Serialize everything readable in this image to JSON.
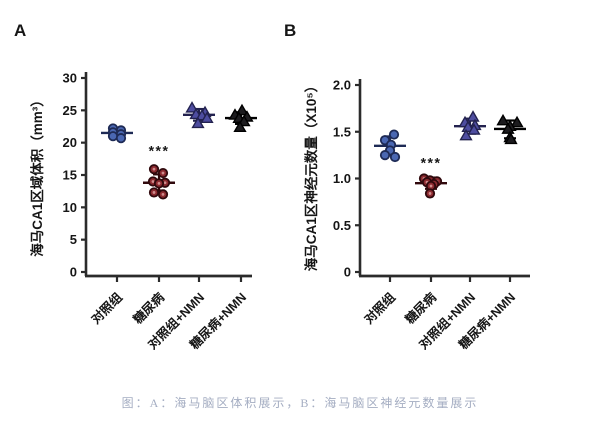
{
  "caption": {
    "text": "图：A：海马脑区体积展示，B：海马脑区神经元数量展示",
    "color": "#a4adc2"
  },
  "chart_data": [
    {
      "type": "scatter",
      "panel_label": "A",
      "ylabel": "海马CA1区域体积（mm³）",
      "xlabel": "",
      "ylim": [
        0,
        30
      ],
      "yticks": [
        0,
        5,
        10,
        15,
        20,
        25,
        30
      ],
      "ytick_labels": [
        "0",
        "5",
        "10",
        "15",
        "20",
        "25",
        "30"
      ],
      "categories": [
        "对照组",
        "糖尿病",
        "对照组+NMN",
        "糖尿病+NMN"
      ],
      "grid": false,
      "legend": "none",
      "groups": [
        {
          "label": "对照组",
          "marker": "circle",
          "color": "#4a67b2",
          "stroke": "#1e2a55",
          "values": [
            22.2,
            21.9,
            21.6,
            21.3,
            21.0,
            20.7
          ],
          "dx": [
            -4,
            4,
            -4,
            4,
            -4,
            4
          ],
          "mean": 21.5,
          "sd_low": 20.7,
          "sd_high": 22.3,
          "sig": "",
          "sig_y": null
        },
        {
          "label": "糖尿病",
          "marker": "circle",
          "color": "#8c2a30",
          "stroke": "#30090d",
          "center_dot": "#cf8d8d",
          "values": [
            15.9,
            15.3,
            14.0,
            13.8,
            13.7,
            12.3,
            12.0
          ],
          "dx": [
            -5,
            4,
            -6,
            6,
            0,
            -5,
            4
          ],
          "mean": 13.8,
          "sd_low": 12.6,
          "sd_high": 15.1,
          "sig": "***",
          "sig_y": 18.0
        },
        {
          "label": "对照组+NMN",
          "marker": "triangle",
          "color": "#4e4da0",
          "stroke": "#23224f",
          "values": [
            25.4,
            24.7,
            24.4,
            24.2,
            23.8,
            23.0
          ],
          "dx": [
            -7,
            6,
            -3,
            3,
            8,
            -1
          ],
          "mean": 24.3,
          "sd_low": 23.4,
          "sd_high": 25.2,
          "sig": "",
          "sig_y": null
        },
        {
          "label": "糖尿病+NMN",
          "marker": "triangle",
          "color": "#1c1b1e",
          "stroke": "#000000",
          "values": [
            25.0,
            24.3,
            24.0,
            23.8,
            23.3,
            22.4
          ],
          "dx": [
            1,
            -6,
            6,
            -2,
            3,
            -1
          ],
          "mean": 23.8,
          "sd_low": 22.9,
          "sd_high": 24.7,
          "sig": "",
          "sig_y": null
        }
      ]
    },
    {
      "type": "scatter",
      "panel_label": "B",
      "ylabel": "海马CA1区神经元数量（X10⁵）",
      "xlabel": "",
      "ylim": [
        0,
        2.0
      ],
      "yticks": [
        0,
        0.5,
        1.0,
        1.5,
        2.0
      ],
      "ytick_labels": [
        "0",
        "0.5",
        "1.0",
        "1.5",
        "2.0"
      ],
      "categories": [
        "对照组",
        "糖尿病",
        "对照组+NMN",
        "糖尿病+NMN"
      ],
      "grid": false,
      "legend": "none",
      "groups": [
        {
          "label": "对照组",
          "marker": "circle",
          "color": "#4a67b2",
          "stroke": "#1e2a55",
          "values": [
            1.47,
            1.41,
            1.36,
            1.3,
            1.25,
            1.23
          ],
          "dx": [
            4,
            -5,
            1,
            0,
            -5,
            5
          ],
          "mean": 1.35,
          "sd_low": 1.25,
          "sd_high": 1.45,
          "sig": "",
          "sig_y": null
        },
        {
          "label": "糖尿病",
          "marker": "circle",
          "color": "#8c2a30",
          "stroke": "#30090d",
          "center_dot": "#cf8d8d",
          "values": [
            1.0,
            0.98,
            0.97,
            0.96,
            0.94,
            0.92,
            0.84
          ],
          "dx": [
            -7,
            -1,
            6,
            -4,
            3,
            0,
            -1
          ],
          "mean": 0.95,
          "sd_low": 0.89,
          "sd_high": 1.01,
          "sig": "***",
          "sig_y": 1.12
        },
        {
          "label": "对照组+NMN",
          "marker": "triangle",
          "color": "#4e4da0",
          "stroke": "#23224f",
          "values": [
            1.66,
            1.6,
            1.57,
            1.55,
            1.52,
            1.46
          ],
          "dx": [
            3,
            -5,
            5,
            -2,
            4,
            -4
          ],
          "mean": 1.56,
          "sd_low": 1.48,
          "sd_high": 1.64,
          "sig": "",
          "sig_y": null
        },
        {
          "label": "糖尿病+NMN",
          "marker": "triangle",
          "color": "#1c1b1e",
          "stroke": "#000000",
          "values": [
            1.62,
            1.6,
            1.56,
            1.53,
            1.44,
            1.42
          ],
          "dx": [
            -7,
            7,
            0,
            -2,
            0,
            1
          ],
          "mean": 1.53,
          "sd_low": 1.43,
          "sd_high": 1.62,
          "sig": "",
          "sig_y": null
        }
      ]
    }
  ]
}
